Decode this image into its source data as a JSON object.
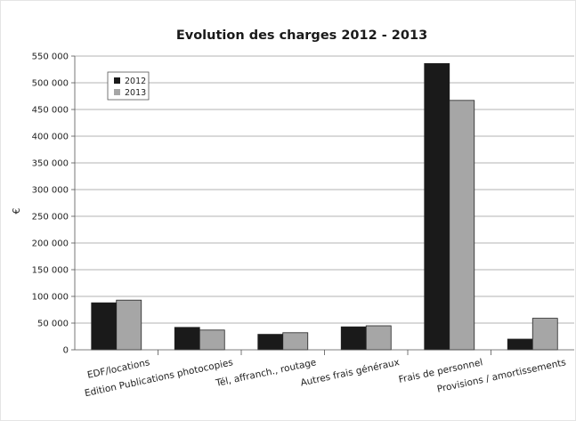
{
  "chart_data": {
    "type": "bar",
    "title": "Evolution des charges 2012 - 2013",
    "xlabel": "",
    "ylabel": "€",
    "ylim": [
      0,
      550000
    ],
    "yticks": [
      0,
      50000,
      100000,
      150000,
      200000,
      250000,
      300000,
      350000,
      400000,
      450000,
      500000,
      550000
    ],
    "ytick_labels": [
      "0",
      "50 000",
      "100 000",
      "150 000",
      "200 000",
      "250 000",
      "300 000",
      "350 000",
      "400 000",
      "450 000",
      "500 000",
      "550 000"
    ],
    "grid": true,
    "legend_position": "top-left",
    "categories": [
      "EDF/locations",
      "Edition Publications photocopies",
      "Tél, affranch., routage",
      "Autres frais généraux",
      "Frais de personnel",
      "Provisions / amortissements"
    ],
    "series": [
      {
        "name": "2012",
        "color": "#1a1a1a",
        "values": [
          88000,
          42000,
          29000,
          43000,
          536000,
          20000
        ]
      },
      {
        "name": "2013",
        "color": "#a6a6a6",
        "values": [
          93000,
          37000,
          32000,
          45000,
          467000,
          59000
        ]
      }
    ]
  }
}
